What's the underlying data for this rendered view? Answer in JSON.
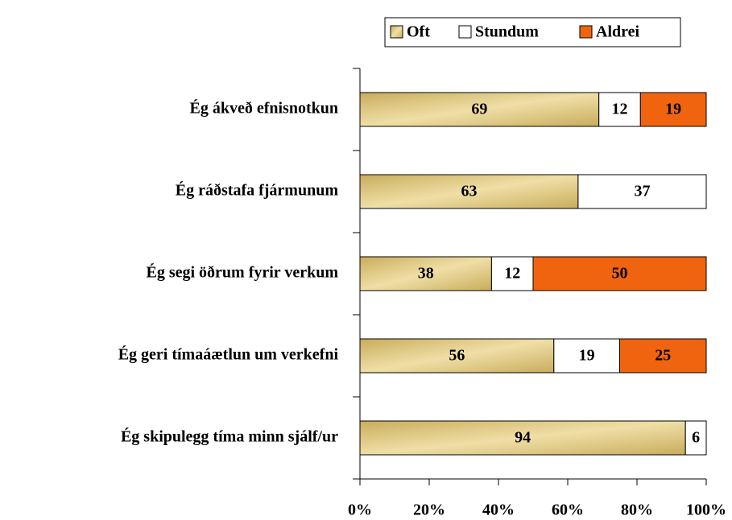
{
  "chart_data": {
    "type": "stacked-bar-horizontal",
    "categories": [
      "Ég ákveð efnisnotkun",
      "Ég ráðstafa fjármunum",
      "Ég segi öðrum fyrir verkum",
      "Ég geri tímaáætlun um verkefni",
      "Ég skipulegg tíma minn sjálf/ur"
    ],
    "series": [
      {
        "name": "Oft",
        "color": "#d8c074",
        "values": [
          69,
          63,
          38,
          56,
          94
        ]
      },
      {
        "name": "Stundum",
        "color": "#ffffff",
        "values": [
          12,
          37,
          12,
          19,
          6
        ]
      },
      {
        "name": "Aldrei",
        "color": "#f0640f",
        "values": [
          19,
          null,
          50,
          25,
          null
        ]
      }
    ],
    "xlim": [
      0,
      100
    ],
    "xticks": [
      {
        "value": 0,
        "label": "0%"
      },
      {
        "value": 20,
        "label": "20%"
      },
      {
        "value": 40,
        "label": "40%"
      },
      {
        "value": 60,
        "label": "60%"
      },
      {
        "value": 80,
        "label": "80%"
      },
      {
        "value": 100,
        "label": "100%"
      }
    ],
    "legend": "top"
  }
}
